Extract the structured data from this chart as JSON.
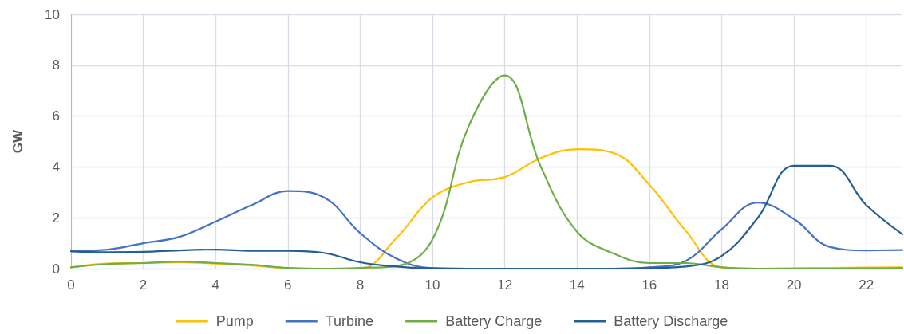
{
  "chart_data": {
    "type": "line",
    "ylabel": "GW",
    "x": [
      0,
      1,
      2,
      3,
      4,
      5,
      6,
      7,
      8,
      9,
      10,
      11,
      12,
      13,
      14,
      15,
      16,
      17,
      18,
      19,
      20,
      21,
      22,
      23
    ],
    "xlim": [
      0,
      23
    ],
    "xticks": [
      0,
      2,
      4,
      6,
      8,
      10,
      12,
      14,
      16,
      18,
      20,
      22
    ],
    "ylim": [
      0,
      10
    ],
    "yticks": [
      0,
      2,
      4,
      6,
      8,
      10
    ],
    "grid": true,
    "legend": "bottom",
    "marker": "none",
    "line_style": "solid",
    "series": [
      {
        "name": "Pump",
        "color": "#ffc000",
        "values": [
          0.05,
          0.2,
          0.22,
          0.25,
          0.2,
          0.12,
          0.02,
          0,
          0,
          1.2,
          2.8,
          3.4,
          3.6,
          4.35,
          4.7,
          4.55,
          3.3,
          1.5,
          0.05,
          0,
          0.02,
          0.03,
          0.04,
          0.05
        ]
      },
      {
        "name": "Turbine",
        "color": "#4472c4",
        "values": [
          0.7,
          0.75,
          1.0,
          1.25,
          1.85,
          2.5,
          3.05,
          2.8,
          1.4,
          0.4,
          0.02,
          0,
          0,
          0,
          0,
          0,
          0.05,
          0.3,
          1.55,
          2.6,
          1.95,
          0.85,
          0.72,
          0.73
        ]
      },
      {
        "name": "Battery Charge",
        "color": "#70ad47",
        "values": [
          0.05,
          0.18,
          0.22,
          0.28,
          0.22,
          0.15,
          0.03,
          0,
          0.03,
          0.1,
          1.15,
          5.6,
          7.6,
          4.0,
          1.45,
          0.6,
          0.22,
          0.22,
          0.05,
          0,
          0,
          0,
          0.01,
          0.02
        ]
      },
      {
        "name": "Battery Discharge",
        "color": "#255e91",
        "values": [
          0.68,
          0.65,
          0.66,
          0.72,
          0.75,
          0.7,
          0.7,
          0.62,
          0.25,
          0.08,
          0.01,
          0,
          0,
          0,
          0,
          0,
          0.02,
          0.08,
          0.5,
          2.0,
          4.05,
          4.05,
          2.5,
          1.35
        ]
      }
    ]
  }
}
